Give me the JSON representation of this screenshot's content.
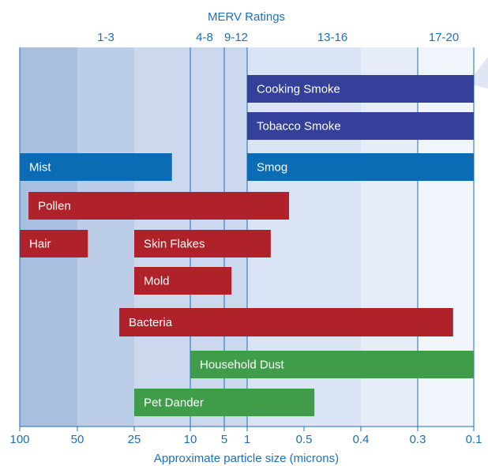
{
  "chart_data": {
    "type": "bar",
    "orientation": "horizontal-range",
    "title": "MERV Ratings",
    "xlabel": "Approximate particle size (microns)",
    "x_ticks": [
      {
        "label": "100",
        "value": 100
      },
      {
        "label": "50",
        "value": 50
      },
      {
        "label": "25",
        "value": 25
      },
      {
        "label": "10",
        "value": 10
      },
      {
        "label": "5",
        "value": 5
      },
      {
        "label": "1",
        "value": 1
      },
      {
        "label": "0.5",
        "value": 0.5
      },
      {
        "label": "0.4",
        "value": 0.4
      },
      {
        "label": "0.3",
        "value": 0.3
      },
      {
        "label": "0.1",
        "value": 0.1
      }
    ],
    "merv_bands": [
      {
        "label": "1-3",
        "from": 100,
        "to": 10
      },
      {
        "label": "4-8",
        "from": 10,
        "to": 5
      },
      {
        "label": "9-12",
        "from": 5,
        "to": 1
      },
      {
        "label": "13-16",
        "from": 1,
        "to": 0.3
      },
      {
        "label": "17-20",
        "from": 0.3,
        "to": 0.1
      }
    ],
    "bars": [
      {
        "label": "Cooking Smoke",
        "from": 1,
        "to": 0.1,
        "color": "#34409a"
      },
      {
        "label": "Tobacco Smoke",
        "from": 1,
        "to": 0.1,
        "color": "#34409a"
      },
      {
        "label": "Mist",
        "from": 100,
        "to": 13.5,
        "color": "#0b6cb5"
      },
      {
        "label": "Smog",
        "from": 1,
        "to": 0.1,
        "color": "#0b6cb5"
      },
      {
        "label": "Pollen",
        "from": 90,
        "to": 0.6,
        "color": "#b02229"
      },
      {
        "label": "Hair",
        "from": 100,
        "to": 44,
        "color": "#b02229"
      },
      {
        "label": "Skin Flakes",
        "from": 25,
        "to": 0.75,
        "color": "#b02229"
      },
      {
        "label": "Mold",
        "from": 25,
        "to": 3,
        "color": "#b02229"
      },
      {
        "label": "Bacteria",
        "from": 30,
        "to": 0.15,
        "color": "#b02229"
      },
      {
        "label": "Household Dust",
        "from": 10,
        "to": 0.1,
        "color": "#3f9c48"
      },
      {
        "label": "Pet Dander",
        "from": 25,
        "to": 0.48,
        "color": "#3f9c48"
      }
    ],
    "colors": {
      "axis": "#1d6fb8",
      "bands": [
        "#a9bfe0",
        "#bccde8",
        "#cbd8ee",
        "#dbe4f4",
        "#e6edf8",
        "#f0f4fb"
      ]
    }
  }
}
